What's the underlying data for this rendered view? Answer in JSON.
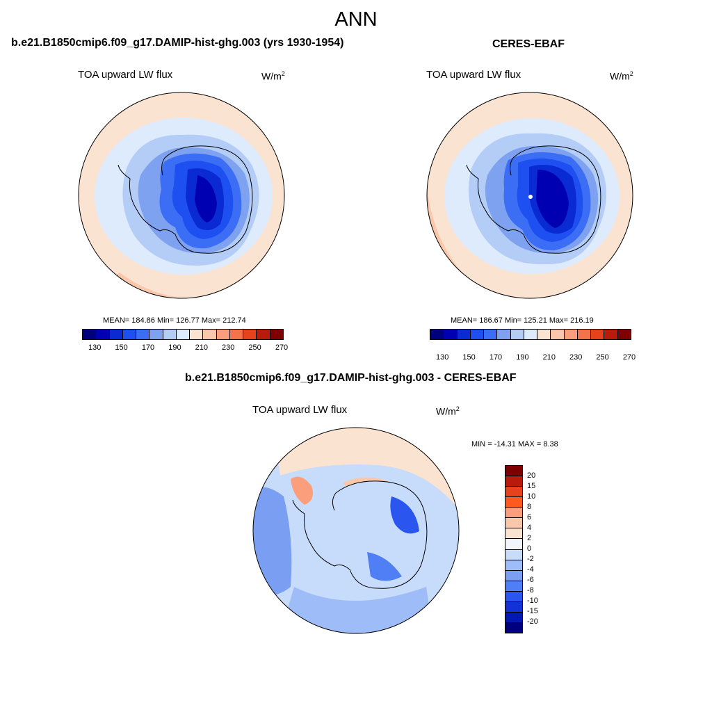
{
  "main_title": "ANN",
  "panels": [
    {
      "title": "b.e21.B1850cmip6.f09_g17.DAMIP-hist-ghg.003 (yrs 1930-1954)",
      "variable": "TOA upward LW flux",
      "units": "W/m",
      "units_sup": "2",
      "stats": "MEAN= 184.86  Min= 126.77  Max= 212.74"
    },
    {
      "title": "CERES-EBAF",
      "variable": "TOA upward LW flux",
      "units": "W/m",
      "units_sup": "2",
      "stats": "MEAN= 186.67  Min= 125.21  Max= 216.19"
    },
    {
      "title": "b.e21.B1850cmip6.f09_g17.DAMIP-hist-ghg.003 - CERES-EBAF",
      "variable": "TOA upward LW flux",
      "units": "W/m",
      "units_sup": "2",
      "stats": "MIN = -14.31 MAX =   8.38"
    }
  ],
  "colorbar_abs": {
    "colors": [
      "#00007f",
      "#0000b2",
      "#0a2ad4",
      "#1e4ff0",
      "#3c6ef5",
      "#7ea2f0",
      "#b4cdf7",
      "#deebfc",
      "#fbe3d2",
      "#fbc7aa",
      "#fb9e7b",
      "#f4734d",
      "#e6421e",
      "#b81b09",
      "#7f0000"
    ],
    "tick_labels": [
      "130",
      "150",
      "170",
      "190",
      "210",
      "230",
      "250",
      "270"
    ]
  },
  "colorbar_diff": {
    "colors": [
      "#7f0000",
      "#b81b09",
      "#e6421e",
      "#ff5a1e",
      "#fb9e7b",
      "#fbc7aa",
      "#fbe3d2",
      "#f2f6fc",
      "#c7dbfb",
      "#9ebcf7",
      "#7a9ff2",
      "#4f7ef5",
      "#2a55ee",
      "#1232d8",
      "#0018b2",
      "#00007f"
    ],
    "tick_labels": [
      "20",
      "15",
      "10",
      "8",
      "6",
      "4",
      "2",
      "0",
      "-2",
      "-4",
      "-6",
      "-8",
      "-10",
      "-15",
      "-20"
    ]
  },
  "map_colors": {
    "ocean_warm": "#fbe3d2",
    "ocean_warm2": "#fbc7aa",
    "ocean_cool": "#deebfc",
    "ice1": "#b4cdf7",
    "ice2": "#7ea2f0",
    "ice3": "#3c6ef5",
    "ice4": "#1e4ff0",
    "ice5": "#0a2ad4",
    "ice6": "#0000b2",
    "diff_bg": "#c7dbfb",
    "diff_mid": "#9ebcf7",
    "diff_strong": "#4f7ef5",
    "diff_warm": "#fbc7aa",
    "diff_hot": "#fb9e7b"
  }
}
